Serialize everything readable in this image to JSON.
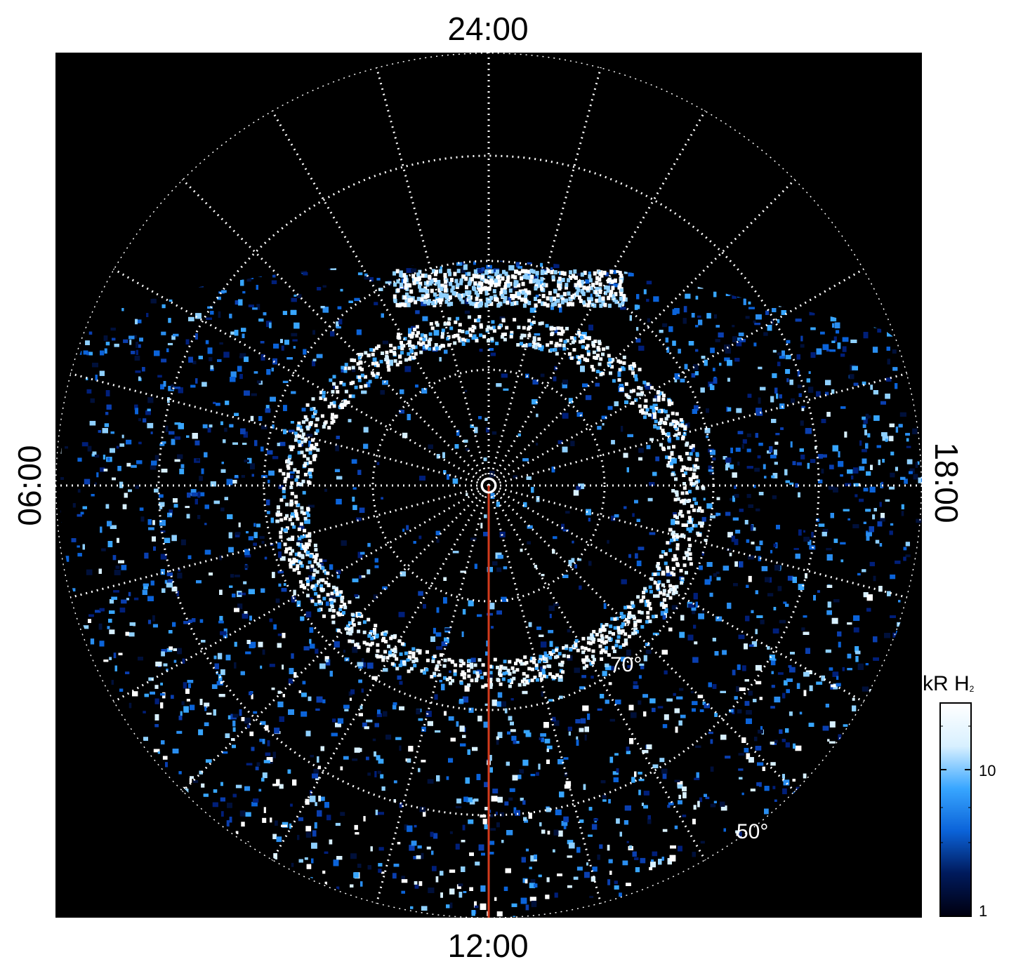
{
  "map": {
    "time_labels": {
      "top": "24:00",
      "bottom": "12:00",
      "left": "06:00",
      "right": "18:00"
    },
    "latitude_labels": [
      "70°",
      "50°"
    ],
    "colorbar": {
      "title_main": "kR H",
      "title_sub": "2",
      "scale": "log",
      "ticks": [
        "10",
        "1"
      ],
      "colors": [
        "#000010",
        "#001a5c",
        "#0b63d9",
        "#38a6ff",
        "#d8f0ff",
        "#ffffff"
      ]
    },
    "meridian_color": "#d33a1c"
  }
}
